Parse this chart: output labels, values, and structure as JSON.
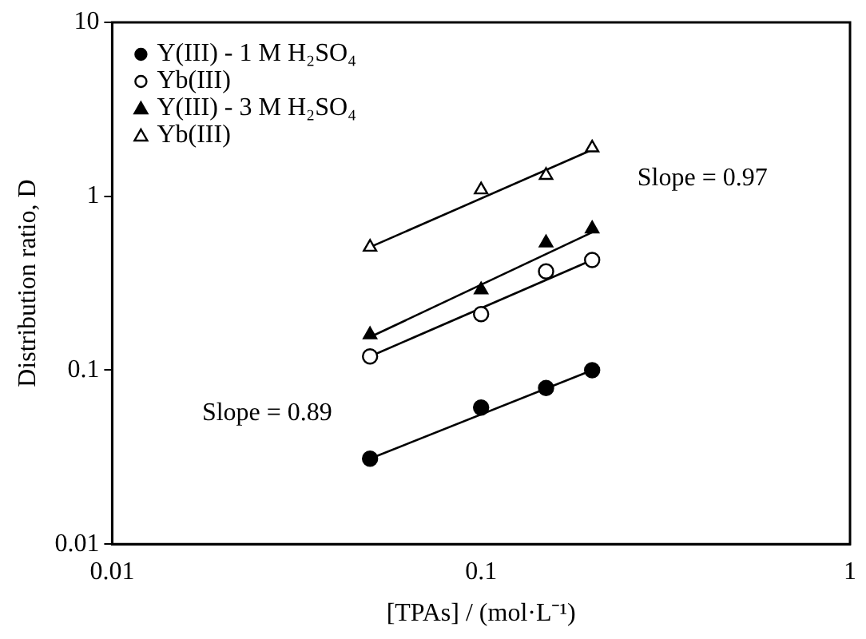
{
  "chart_data": {
    "type": "scatter",
    "xlabel": "[TPAs] / (mol·L⁻¹)",
    "ylabel": "Distribution ratio, D",
    "log": "xy",
    "xlim": [
      0.01,
      1
    ],
    "xticks": [
      0.01,
      0.1,
      1
    ],
    "ylim": [
      0.01,
      10
    ],
    "yticks": [
      0.01,
      0.1,
      1,
      10
    ],
    "grid": false,
    "legend": "top left",
    "series": [
      {
        "name": "Y(III) - 1 M H₂SO₄",
        "color": "#000000",
        "marker": "circle",
        "x": [
          0.05,
          0.1,
          0.15,
          0.2
        ],
        "values": [
          0.031,
          0.061,
          0.079,
          0.1
        ]
      },
      {
        "name": "Yb(III)",
        "color": "#ffffff",
        "marker": "circle",
        "x": [
          0.05,
          0.1,
          0.15,
          0.2
        ],
        "values": [
          0.12,
          0.21,
          0.37,
          0.43
        ]
      },
      {
        "name": "Y(III) - 3 M H₂SO₄",
        "color": "#000000",
        "marker": "triangle",
        "x": [
          0.05,
          0.1,
          0.15,
          0.2
        ],
        "values": [
          0.16,
          0.29,
          0.54,
          0.65
        ]
      },
      {
        "name": "Yb(III)",
        "color": "#ffffff",
        "marker": "triangle",
        "x": [
          0.05,
          0.1,
          0.15,
          0.2
        ],
        "values": [
          0.51,
          1.09,
          1.32,
          1.9
        ]
      },
      {
        "type": "line",
        "color": "#000000",
        "marker": "none",
        "x": [
          0.05,
          0.2
        ],
        "values": [
          0.031,
          0.1
        ]
      },
      {
        "type": "line",
        "color": "#000000",
        "marker": "none",
        "x": [
          0.05,
          0.2
        ],
        "values": [
          0.12,
          0.43
        ]
      },
      {
        "type": "line",
        "color": "#000000",
        "marker": "none",
        "x": [
          0.05,
          0.2
        ],
        "values": [
          0.155,
          0.62
        ]
      },
      {
        "type": "line",
        "color": "#000000",
        "marker": "none",
        "x": [
          0.05,
          0.2
        ],
        "values": [
          0.51,
          1.85
        ]
      }
    ],
    "annotations": [
      "Slope = 0.97",
      "Slope = 0.89"
    ]
  }
}
